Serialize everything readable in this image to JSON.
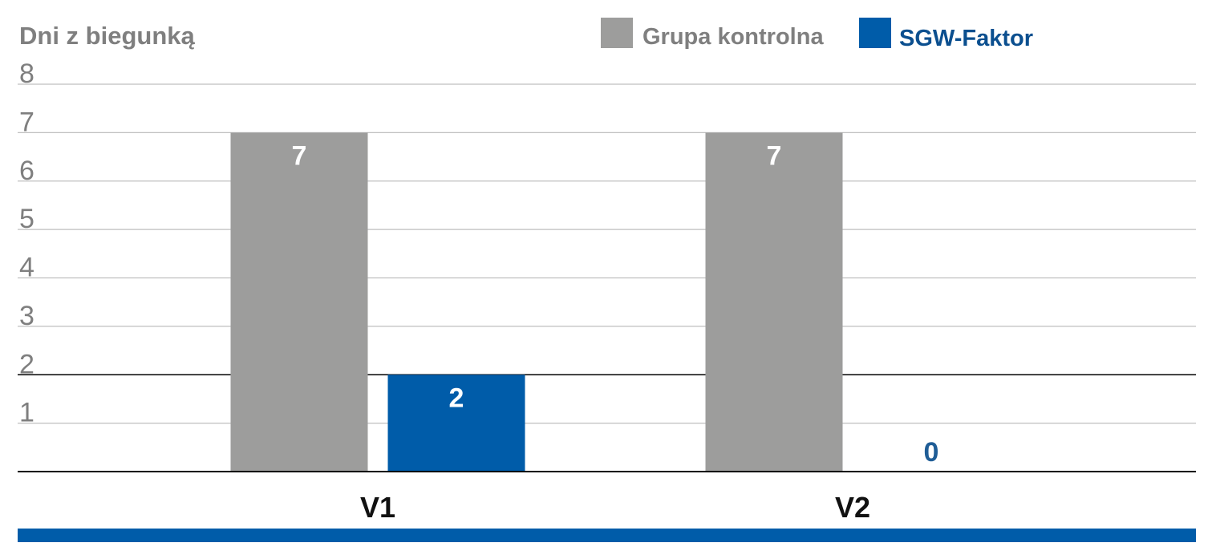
{
  "chart_data": {
    "type": "bar",
    "ylabel": "Dni z biegunką",
    "xlabel": "",
    "categories": [
      "V1",
      "V2"
    ],
    "series": [
      {
        "name": "Grupa kontrolna",
        "values": [
          7,
          7
        ],
        "color": "#9d9d9c",
        "label_color": "#ffffff"
      },
      {
        "name": "SGW-Faktor",
        "values": [
          2,
          0
        ],
        "color": "#005ca9",
        "label_color": "#ffffff",
        "legend_text_color": "#0b4f8f"
      }
    ],
    "ylim": [
      0,
      8
    ],
    "yticks": [
      1,
      2,
      3,
      4,
      5,
      6,
      7,
      8
    ],
    "grid": true,
    "legend_position": "top-right",
    "colors": {
      "axis_text": "#7f7f7f",
      "grid": "#bfbfbf",
      "baseline": "#000000",
      "footer_bar": "#005ca9",
      "zero_label": "#1f5d96"
    }
  }
}
